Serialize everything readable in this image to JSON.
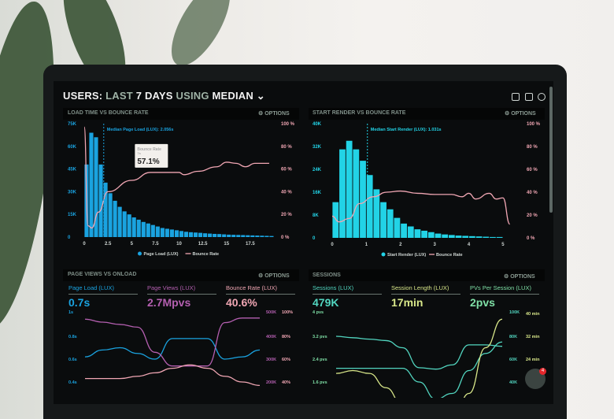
{
  "header": {
    "title_parts": [
      {
        "t": "USERS: ",
        "c": "w"
      },
      {
        "t": "LAST ",
        "c": "g"
      },
      {
        "t": "7 DAYS ",
        "c": "w"
      },
      {
        "t": "USING ",
        "c": "g"
      },
      {
        "t": "MEDIAN",
        "c": "w"
      }
    ],
    "icons": [
      "monitor-icon",
      "share-icon",
      "help-icon"
    ]
  },
  "options_label": "⚙ OPTIONS",
  "colors": {
    "blue": "#1aa3e0",
    "cyan": "#22d3e6",
    "pink": "#f0a6b3",
    "purple": "#b45fb0",
    "teal": "#52d6c0",
    "yellow": "#d9e88a",
    "green": "#7fe0a6"
  },
  "chart_data": [
    {
      "type": "bar",
      "title": "LOAD TIME VS BOUNCE RATE",
      "annotation": "Median Page Load (LUX): 2.056s",
      "median": 2.056,
      "tooltip": {
        "title": "Bounce Rate",
        "sub": "7s",
        "value": "57.1%"
      },
      "xticks": [
        "0",
        "2.5",
        "5",
        "7.5",
        "10",
        "12.5",
        "15",
        "17.5"
      ],
      "xlim": [
        0,
        20
      ],
      "yticks_left": [
        "0",
        "15K",
        "30K",
        "45K",
        "60K",
        "75K"
      ],
      "ylim_left": [
        0,
        75
      ],
      "yticks_right": [
        "0 %",
        "20 %",
        "40 %",
        "60 %",
        "80 %",
        "100 %"
      ],
      "ylim_right": [
        0,
        100
      ],
      "legend": [
        "Page Load (LUX)",
        "Bounce Rate"
      ],
      "bar_width": 0.5,
      "bars": [
        48,
        69,
        66,
        48,
        36,
        29,
        24,
        20,
        17,
        15,
        13,
        11.5,
        10,
        9,
        8,
        7,
        6,
        5.5,
        5,
        4.5,
        4,
        3.5,
        3.2,
        3,
        2.8,
        2.5,
        2.3,
        2.1,
        2,
        1.8,
        1.6,
        1.5,
        1.4,
        1.3,
        1.2,
        1.1,
        1,
        0.9,
        0.8,
        0.7
      ],
      "line": [
        [
          0,
          97
        ],
        [
          0.4,
          10
        ],
        [
          0.8,
          8
        ],
        [
          1.5,
          22
        ],
        [
          2.5,
          40
        ],
        [
          5,
          50
        ],
        [
          7,
          57
        ],
        [
          10,
          57
        ],
        [
          10.5,
          55
        ],
        [
          12,
          58
        ],
        [
          14,
          62
        ],
        [
          15,
          66
        ],
        [
          16,
          65
        ],
        [
          17,
          62
        ],
        [
          18,
          65
        ],
        [
          19.5,
          65
        ]
      ]
    },
    {
      "type": "bar",
      "title": "START RENDER VS BOUNCE RATE",
      "annotation": "Median Start Render (LUX): 1.031s",
      "median": 1.031,
      "xticks": [
        "0",
        "1",
        "2",
        "3",
        "4",
        "5"
      ],
      "xlim": [
        0,
        5.3
      ],
      "yticks_left": [
        "0",
        "8K",
        "16K",
        "24K",
        "32K",
        "40K"
      ],
      "ylim_left": [
        0,
        40
      ],
      "yticks_right": [
        "0 %",
        "20 %",
        "40 %",
        "60 %",
        "80 %",
        "100 %"
      ],
      "ylim_right": [
        0,
        100
      ],
      "legend": [
        "Start Render (LUX)",
        "Bounce Rate"
      ],
      "bar_width": 0.2,
      "bars": [
        12.5,
        31,
        34,
        31,
        27,
        22,
        17,
        12.5,
        10,
        7,
        5,
        4,
        3,
        2.5,
        2,
        1.5,
        1.2,
        1,
        0.8,
        0.7,
        0.6,
        0.5,
        0.4,
        0.3,
        0.3
      ],
      "line": [
        [
          0,
          19
        ],
        [
          0.2,
          14
        ],
        [
          0.5,
          17
        ],
        [
          0.8,
          30
        ],
        [
          1.2,
          36
        ],
        [
          1.6,
          40
        ],
        [
          2,
          41
        ],
        [
          2.5,
          39
        ],
        [
          3,
          38
        ],
        [
          3.5,
          38
        ],
        [
          3.8,
          36
        ],
        [
          4,
          39
        ],
        [
          4.2,
          34
        ],
        [
          4.6,
          39
        ],
        [
          4.8,
          34
        ],
        [
          5,
          35
        ],
        [
          5.2,
          12
        ]
      ]
    },
    {
      "type": "line",
      "title": "PAGE VIEWS VS ONLOAD",
      "stats": [
        {
          "label": "Page Load (LUX)",
          "value": "0.7s"
        },
        {
          "label": "Page Views (LUX)",
          "value": "2.7Mpvs"
        },
        {
          "label": "Bounce Rate (LUX)",
          "value": "40.6%"
        }
      ],
      "yticks_left": [
        "0.4s",
        "0.6s",
        "0.8s",
        "1s"
      ],
      "ylim_left": [
        0.4,
        1.0
      ],
      "yticks_right1": [
        "200K",
        "300K",
        "400K",
        "500K"
      ],
      "ylim_right1": [
        200,
        500
      ],
      "yticks_right2": [
        "40%",
        "60%",
        "80%",
        "100%"
      ],
      "ylim_right2": [
        40,
        100
      ],
      "series": [
        {
          "axis": "left",
          "color": "blue",
          "values": [
            0.62,
            0.68,
            0.7,
            0.65,
            0.6,
            0.78,
            0.78,
            0.78,
            0.6,
            0.62,
            0.68
          ]
        },
        {
          "axis": "right1",
          "color": "purple",
          "values": [
            475,
            462,
            452,
            440,
            330,
            270,
            270,
            270,
            460,
            480,
            480
          ]
        },
        {
          "axis": "right2",
          "color": "pink",
          "values": [
            43,
            43,
            43,
            45,
            48,
            52,
            55,
            52,
            45,
            40,
            37
          ]
        }
      ]
    },
    {
      "type": "line",
      "title": "SESSIONS",
      "stats": [
        {
          "label": "Sessions (LUX)",
          "value": "479K"
        },
        {
          "label": "Session Length (LUX)",
          "value": "17min"
        },
        {
          "label": "PVs Per Session (LUX)",
          "value": "2pvs"
        }
      ],
      "yticks_left": [
        "1.6 pvs",
        "2.4 pvs",
        "3.2 pvs",
        "4 pvs"
      ],
      "ylim_left": [
        1.6,
        4
      ],
      "yticks_right1": [
        "40K",
        "60K",
        "80K",
        "100K"
      ],
      "ylim_right1": [
        40,
        100
      ],
      "yticks_right2": [
        "24 min",
        "32 min",
        "40 min"
      ],
      "ylim_right2": [
        16,
        40
      ],
      "series": [
        {
          "axis": "left",
          "color": "teal",
          "values": [
            3.2,
            3.15,
            3.1,
            3.05,
            2.8,
            2.1,
            2.05,
            2.2,
            2.9,
            2.9,
            2.85
          ]
        },
        {
          "axis": "right1",
          "color": "teal",
          "values": [
            52,
            52,
            52,
            52,
            52,
            40,
            25,
            30,
            50,
            65,
            75
          ]
        },
        {
          "axis": "right2",
          "color": "yellow",
          "values": [
            19,
            20,
            19,
            14,
            8,
            4,
            2,
            2,
            12,
            28,
            38
          ]
        }
      ]
    }
  ],
  "chat": {
    "badge": "4"
  }
}
